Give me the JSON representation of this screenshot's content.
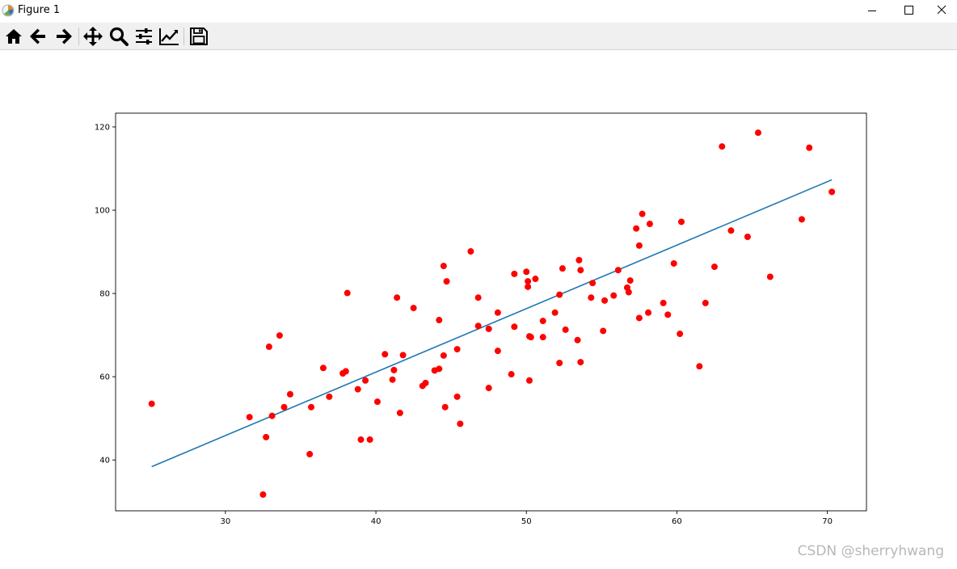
{
  "window": {
    "title": "Figure 1",
    "controls": [
      "minimize",
      "maximize",
      "close"
    ]
  },
  "toolbar": {
    "buttons": [
      {
        "name": "home-icon",
        "tooltip": "Reset original view"
      },
      {
        "name": "back-arrow-icon",
        "tooltip": "Back to previous view"
      },
      {
        "name": "forward-arrow-icon",
        "tooltip": "Forward to next view"
      },
      {
        "name": "pan-icon",
        "tooltip": "Pan axes"
      },
      {
        "name": "zoom-icon",
        "tooltip": "Zoom to rectangle"
      },
      {
        "name": "configure-subplots-icon",
        "tooltip": "Configure subplots"
      },
      {
        "name": "edit-axis-icon",
        "tooltip": "Edit axis, curve and image parameters"
      },
      {
        "name": "save-icon",
        "tooltip": "Save the figure"
      }
    ]
  },
  "watermark": "CSDN @sherryhwang",
  "chart_data": {
    "type": "scatter",
    "title": "",
    "xlabel": "",
    "ylabel": "",
    "xlim": [
      22.7,
      72.6
    ],
    "ylim": [
      27.8,
      123.3
    ],
    "xticks": [
      30,
      40,
      50,
      60,
      70
    ],
    "yticks": [
      40,
      60,
      80,
      100,
      120
    ],
    "grid": false,
    "colors": {
      "points": "#ff0000",
      "line": "#1f77b4"
    },
    "series": [
      {
        "type": "scatter",
        "points": [
          [
            25.1,
            53.5
          ],
          [
            31.6,
            50.3
          ],
          [
            32.5,
            31.7
          ],
          [
            32.7,
            45.5
          ],
          [
            32.9,
            67.2
          ],
          [
            33.1,
            50.6
          ],
          [
            33.6,
            69.9
          ],
          [
            33.9,
            52.7
          ],
          [
            34.3,
            55.8
          ],
          [
            35.6,
            41.4
          ],
          [
            35.7,
            52.7
          ],
          [
            36.5,
            62.1
          ],
          [
            36.9,
            55.2
          ],
          [
            37.8,
            60.8
          ],
          [
            38.0,
            61.3
          ],
          [
            38.1,
            80.1
          ],
          [
            38.8,
            57.0
          ],
          [
            39.0,
            44.9
          ],
          [
            39.3,
            59.1
          ],
          [
            39.6,
            44.9
          ],
          [
            40.1,
            54.0
          ],
          [
            40.6,
            65.4
          ],
          [
            41.1,
            59.3
          ],
          [
            41.2,
            61.6
          ],
          [
            41.4,
            79.0
          ],
          [
            41.6,
            51.3
          ],
          [
            41.8,
            65.2
          ],
          [
            42.5,
            76.5
          ],
          [
            43.1,
            57.8
          ],
          [
            43.3,
            58.5
          ],
          [
            43.9,
            61.5
          ],
          [
            44.2,
            73.6
          ],
          [
            44.2,
            61.9
          ],
          [
            44.5,
            86.6
          ],
          [
            44.5,
            65.1
          ],
          [
            44.6,
            52.7
          ],
          [
            44.7,
            82.9
          ],
          [
            45.4,
            66.6
          ],
          [
            45.4,
            55.2
          ],
          [
            45.6,
            48.7
          ],
          [
            46.3,
            90.1
          ],
          [
            46.8,
            79.0
          ],
          [
            46.8,
            72.2
          ],
          [
            47.5,
            71.5
          ],
          [
            47.5,
            57.3
          ],
          [
            48.1,
            75.4
          ],
          [
            48.1,
            66.2
          ],
          [
            49.0,
            60.6
          ],
          [
            49.2,
            84.7
          ],
          [
            49.2,
            72.0
          ],
          [
            50.0,
            85.2
          ],
          [
            50.1,
            81.6
          ],
          [
            50.1,
            82.9
          ],
          [
            50.2,
            59.1
          ],
          [
            50.2,
            69.7
          ],
          [
            50.3,
            69.5
          ],
          [
            50.6,
            83.5
          ],
          [
            51.1,
            69.5
          ],
          [
            51.1,
            73.4
          ],
          [
            51.9,
            75.4
          ],
          [
            52.2,
            63.3
          ],
          [
            52.2,
            79.7
          ],
          [
            52.4,
            86.0
          ],
          [
            52.6,
            71.3
          ],
          [
            53.4,
            68.8
          ],
          [
            53.5,
            88.0
          ],
          [
            53.6,
            85.6
          ],
          [
            53.6,
            63.5
          ],
          [
            54.3,
            79.0
          ],
          [
            54.4,
            82.5
          ],
          [
            55.1,
            71.0
          ],
          [
            55.2,
            78.3
          ],
          [
            55.8,
            79.5
          ],
          [
            56.1,
            85.6
          ],
          [
            56.7,
            81.4
          ],
          [
            56.8,
            80.3
          ],
          [
            56.9,
            83.1
          ],
          [
            57.3,
            95.6
          ],
          [
            57.5,
            91.5
          ],
          [
            57.5,
            74.1
          ],
          [
            57.7,
            99.1
          ],
          [
            58.1,
            75.4
          ],
          [
            58.2,
            96.7
          ],
          [
            59.1,
            77.7
          ],
          [
            59.4,
            74.9
          ],
          [
            59.8,
            87.2
          ],
          [
            60.2,
            70.3
          ],
          [
            60.3,
            97.2
          ],
          [
            61.5,
            62.5
          ],
          [
            61.9,
            77.7
          ],
          [
            62.5,
            86.4
          ],
          [
            63.0,
            115.3
          ],
          [
            63.6,
            95.1
          ],
          [
            64.7,
            93.6
          ],
          [
            65.4,
            118.6
          ],
          [
            66.2,
            84.0
          ],
          [
            68.3,
            97.8
          ],
          [
            68.8,
            115.0
          ],
          [
            70.3,
            104.4
          ]
        ]
      },
      {
        "type": "line",
        "points": [
          [
            25.1,
            38.4
          ],
          [
            70.3,
            107.3
          ]
        ]
      }
    ]
  }
}
